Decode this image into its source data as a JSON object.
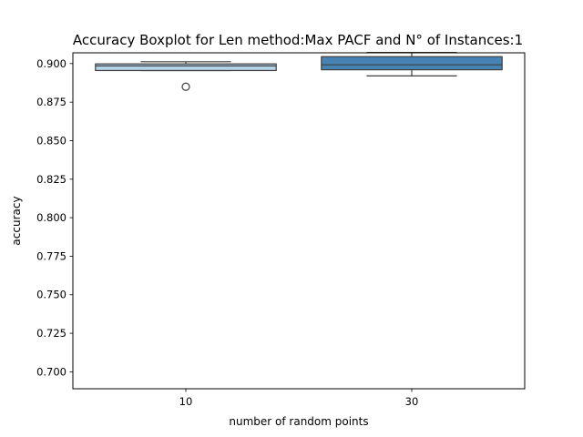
{
  "chart_data": {
    "type": "boxplot",
    "title": "Accuracy Boxplot for Len method:Max PACF and N° of Instances:1",
    "xlabel": "number of random points",
    "ylabel": "accuracy",
    "ylim": [
      0.689,
      0.907
    ],
    "yticks": [
      "0.700",
      "0.725",
      "0.750",
      "0.775",
      "0.800",
      "0.825",
      "0.850",
      "0.875",
      "0.900"
    ],
    "grid": false,
    "categories": [
      "10",
      "30"
    ],
    "boxes": [
      {
        "category": "10",
        "whisker_low": 0.8955,
        "q1": 0.8955,
        "median": 0.8985,
        "q3": 0.8998,
        "whisker_high": 0.9012,
        "outliers": [
          0.885
        ],
        "color": "#b3d3e8"
      },
      {
        "category": "30",
        "whisker_low": 0.892,
        "q1": 0.896,
        "median": 0.8992,
        "q3": 0.9045,
        "whisker_high": 0.9072,
        "outliers": [],
        "color": "#4682b4"
      }
    ]
  }
}
